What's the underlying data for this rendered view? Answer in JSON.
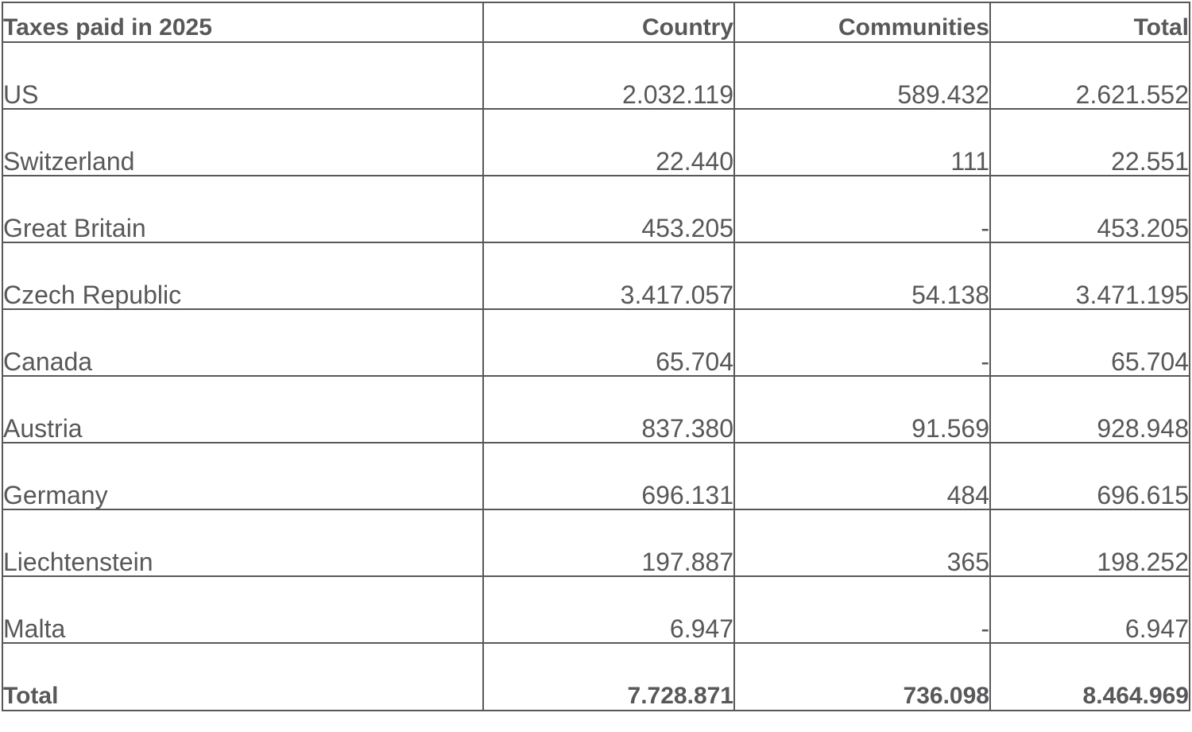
{
  "table": {
    "headers": {
      "label": "Taxes paid in 2025",
      "country": "Country",
      "communities": "Communities",
      "total": "Total"
    },
    "rows": [
      {
        "name": "US",
        "country": "2.032.119",
        "communities": "589.432",
        "total": "2.621.552"
      },
      {
        "name": "Switzerland",
        "country": "22.440",
        "communities": "111",
        "total": "22.551"
      },
      {
        "name": "Great Britain",
        "country": "453.205",
        "communities": "-",
        "total": "453.205"
      },
      {
        "name": "Czech Republic",
        "country": "3.417.057",
        "communities": "54.138",
        "total": "3.471.195"
      },
      {
        "name": "Canada",
        "country": "65.704",
        "communities": "-",
        "total": "65.704"
      },
      {
        "name": "Austria",
        "country": "837.380",
        "communities": "91.569",
        "total": "928.948"
      },
      {
        "name": "Germany",
        "country": "696.131",
        "communities": "484",
        "total": "696.615"
      },
      {
        "name": "Liechtenstein",
        "country": "197.887",
        "communities": "365",
        "total": "198.252"
      },
      {
        "name": "Malta",
        "country": "6.947",
        "communities": "-",
        "total": "6.947"
      }
    ],
    "footer": {
      "label": "Total",
      "country": "7.728.871",
      "communities": "736.098",
      "total": "8.464.969"
    }
  }
}
